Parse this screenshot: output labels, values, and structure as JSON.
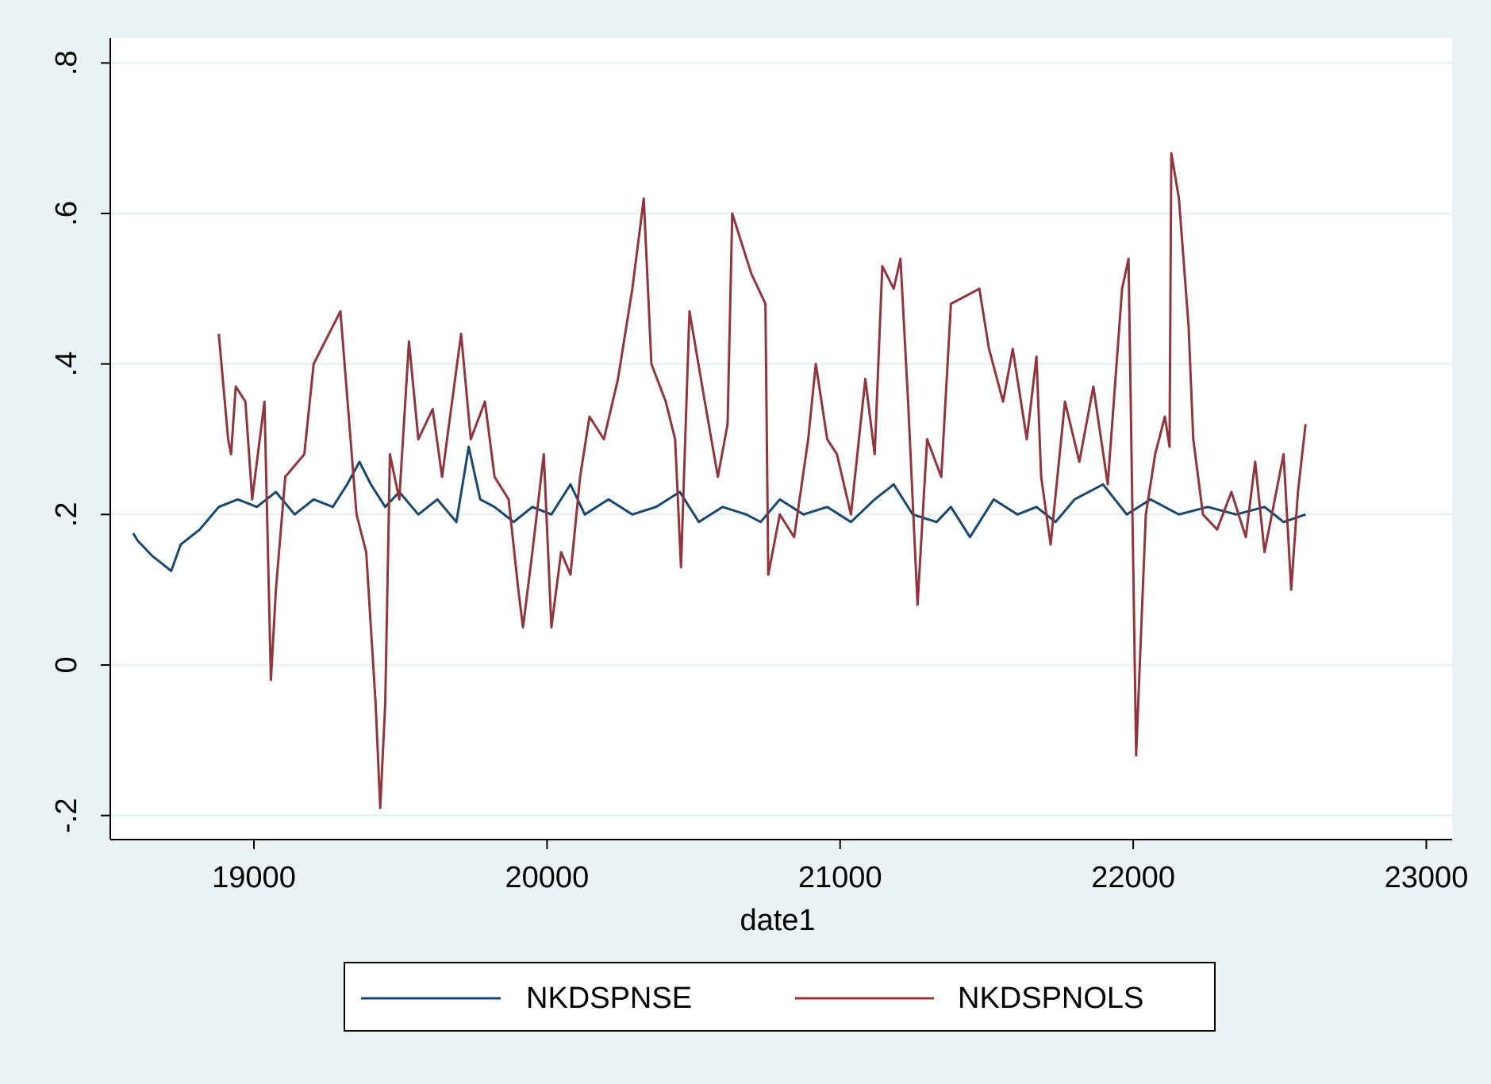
{
  "chart_data": {
    "type": "line",
    "x_label": "date1",
    "xlim": [
      18510,
      23088
    ],
    "ylim": [
      -0.232,
      0.833
    ],
    "xticks": [
      19000,
      20000,
      21000,
      22000,
      23000
    ],
    "yticks": [
      {
        "value": -0.2,
        "label": "-.2"
      },
      0,
      {
        "value": 0.2,
        "label": ".2"
      },
      {
        "value": 0.4,
        "label": ".4"
      },
      {
        "value": 0.6,
        "label": ".6"
      },
      {
        "value": 0.8,
        "label": ".8"
      }
    ],
    "grid": true,
    "series": [
      {
        "name": "NKDSPNSE",
        "color": "#1a476f",
        "x": [
          18588,
          18604,
          18653,
          18718,
          18750,
          18815,
          18880,
          18945,
          19010,
          19075,
          19139,
          19204,
          19269,
          19318,
          19360,
          19399,
          19448,
          19496,
          19561,
          19626,
          19691,
          19733,
          19772,
          19821,
          19886,
          19950,
          20015,
          20080,
          20129,
          20210,
          20291,
          20372,
          20453,
          20518,
          20599,
          20680,
          20729,
          20794,
          20875,
          20956,
          21037,
          21118,
          21183,
          21248,
          21329,
          21378,
          21443,
          21524,
          21605,
          21670,
          21735,
          21800,
          21897,
          21978,
          22059,
          22156,
          22254,
          22351,
          22448,
          22513,
          22588
        ],
        "values": [
          0.175,
          0.165,
          0.145,
          0.125,
          0.16,
          0.18,
          0.21,
          0.22,
          0.21,
          0.23,
          0.2,
          0.22,
          0.21,
          0.24,
          0.27,
          0.24,
          0.21,
          0.23,
          0.2,
          0.22,
          0.19,
          0.29,
          0.22,
          0.21,
          0.19,
          0.21,
          0.2,
          0.24,
          0.2,
          0.22,
          0.2,
          0.21,
          0.23,
          0.19,
          0.21,
          0.2,
          0.19,
          0.22,
          0.2,
          0.21,
          0.19,
          0.22,
          0.24,
          0.2,
          0.19,
          0.21,
          0.17,
          0.22,
          0.2,
          0.21,
          0.19,
          0.22,
          0.24,
          0.2,
          0.22,
          0.2,
          0.21,
          0.2,
          0.21,
          0.19,
          0.2
        ]
      },
      {
        "name": "NKDSPNOLS",
        "color": "#90353b",
        "x": [
          18880,
          18912,
          18922,
          18938,
          18971,
          18994,
          19036,
          19058,
          19075,
          19107,
          19172,
          19204,
          19269,
          19295,
          19350,
          19383,
          19415,
          19431,
          19448,
          19464,
          19496,
          19529,
          19561,
          19610,
          19642,
          19707,
          19740,
          19788,
          19821,
          19869,
          19902,
          19918,
          19950,
          19989,
          20015,
          20048,
          20080,
          20113,
          20145,
          20194,
          20242,
          20291,
          20330,
          20356,
          20405,
          20437,
          20457,
          20486,
          20534,
          20583,
          20616,
          20632,
          20697,
          20745,
          20755,
          20794,
          20843,
          20891,
          20917,
          20956,
          20989,
          21037,
          21086,
          21118,
          21144,
          21183,
          21206,
          21232,
          21264,
          21297,
          21345,
          21378,
          21427,
          21475,
          21508,
          21556,
          21589,
          21637,
          21670,
          21686,
          21718,
          21767,
          21816,
          21864,
          21913,
          21962,
          21984,
          22010,
          22043,
          22075,
          22108,
          22124,
          22130,
          22156,
          22189,
          22205,
          22238,
          22286,
          22335,
          22384,
          22416,
          22448,
          22513,
          22539,
          22562,
          22588
        ],
        "values": [
          0.44,
          0.3,
          0.28,
          0.37,
          0.35,
          0.22,
          0.35,
          -0.02,
          0.1,
          0.25,
          0.28,
          0.4,
          0.45,
          0.47,
          0.2,
          0.15,
          -0.05,
          -0.19,
          -0.05,
          0.28,
          0.22,
          0.43,
          0.3,
          0.34,
          0.25,
          0.44,
          0.3,
          0.35,
          0.25,
          0.22,
          0.1,
          0.05,
          0.15,
          0.28,
          0.05,
          0.15,
          0.12,
          0.25,
          0.33,
          0.3,
          0.38,
          0.5,
          0.62,
          0.4,
          0.35,
          0.3,
          0.13,
          0.47,
          0.36,
          0.25,
          0.32,
          0.6,
          0.52,
          0.48,
          0.12,
          0.2,
          0.17,
          0.3,
          0.4,
          0.3,
          0.28,
          0.2,
          0.38,
          0.28,
          0.53,
          0.5,
          0.54,
          0.35,
          0.08,
          0.3,
          0.25,
          0.48,
          0.49,
          0.5,
          0.42,
          0.35,
          0.42,
          0.3,
          0.41,
          0.25,
          0.16,
          0.35,
          0.27,
          0.37,
          0.24,
          0.5,
          0.54,
          -0.12,
          0.2,
          0.28,
          0.33,
          0.29,
          0.68,
          0.62,
          0.45,
          0.3,
          0.2,
          0.18,
          0.23,
          0.17,
          0.27,
          0.15,
          0.28,
          0.1,
          0.23,
          0.32
        ]
      }
    ]
  }
}
